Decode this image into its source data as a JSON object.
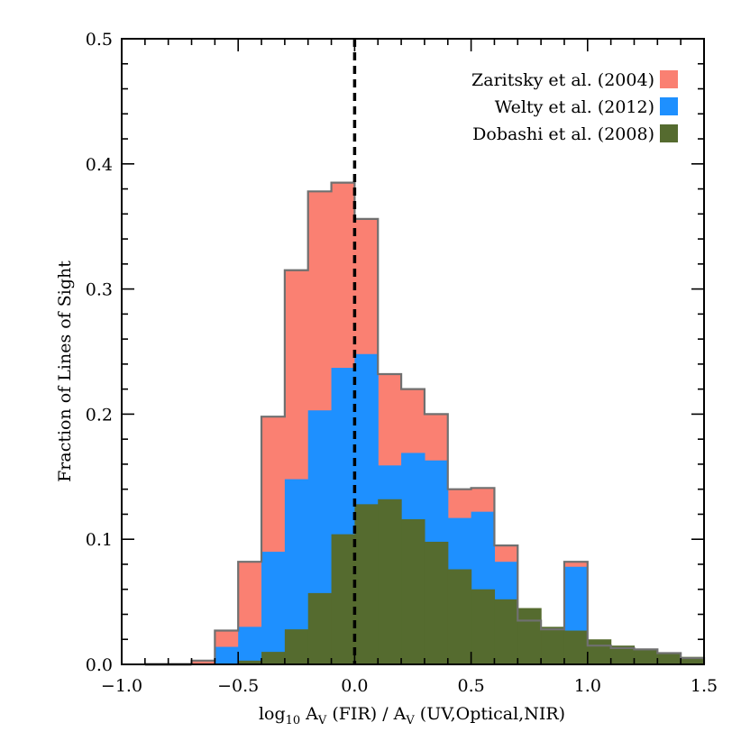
{
  "chart_data": {
    "type": "bar",
    "subtype": "overlaid-histogram",
    "title": "",
    "xlabel": "log₁₀ Aᵥ (FIR) / Aᵥ (UV,Optical,NIR)",
    "xlabel_parts": {
      "log": "log",
      "log_sub": "10",
      "av1": "A",
      "av1_sub": "V",
      "mid": " (FIR) / ",
      "av2": "A",
      "av2_sub": "V",
      "tail": " (UV,Optical,NIR)"
    },
    "ylabel": "Fraction of Lines of Sight",
    "xlim": [
      -1.0,
      1.5
    ],
    "ylim": [
      0.0,
      0.5
    ],
    "x_ticks": [
      "−1.0",
      "−0.5",
      "0.0",
      "0.5",
      "1.0",
      "1.5"
    ],
    "y_ticks": [
      "0.0",
      "0.1",
      "0.2",
      "0.3",
      "0.4",
      "0.5"
    ],
    "grid": false,
    "legend_position": "top-right",
    "reference_line": {
      "x": 0.0,
      "style": "dashed",
      "color": "#000000"
    },
    "bin_width": 0.1,
    "bin_edges": [
      -0.7,
      -0.6,
      -0.5,
      -0.4,
      -0.3,
      -0.2,
      -0.1,
      0.0,
      0.1,
      0.2,
      0.3,
      0.4,
      0.5,
      0.6,
      0.7,
      0.8,
      0.9,
      1.0,
      1.1,
      1.2,
      1.3,
      1.4,
      1.5
    ],
    "series": [
      {
        "name": "Zaritsky et al. (2004)",
        "color": "#fa8072",
        "values": [
          0.003,
          0.027,
          0.082,
          0.198,
          0.315,
          0.378,
          0.385,
          0.356,
          0.232,
          0.22,
          0.2,
          0.14,
          0.141,
          0.095,
          0.035,
          0.028,
          0.082,
          0.015,
          0.013,
          0.012,
          0.009,
          0.005
        ]
      },
      {
        "name": "Welty et al. (2012)",
        "color": "#1e90ff",
        "values": [
          0.0,
          0.014,
          0.03,
          0.09,
          0.148,
          0.203,
          0.237,
          0.248,
          0.159,
          0.169,
          0.163,
          0.117,
          0.122,
          0.082,
          0.029,
          0.022,
          0.078,
          0.013,
          0.01,
          0.01,
          0.007,
          0.004
        ]
      },
      {
        "name": "Dobashi et al. (2008)",
        "color": "#556b2f",
        "values": [
          0.0,
          0.0,
          0.003,
          0.01,
          0.028,
          0.057,
          0.104,
          0.128,
          0.132,
          0.116,
          0.098,
          0.076,
          0.06,
          0.052,
          0.045,
          0.03,
          0.027,
          0.02,
          0.015,
          0.012,
          0.009,
          0.006
        ]
      }
    ]
  }
}
